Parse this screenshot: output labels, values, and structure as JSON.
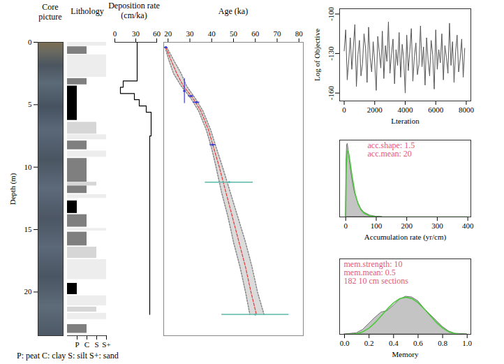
{
  "chart_data": [
    {
      "type": "image",
      "title": "Core picture",
      "ylabel": "Depth (m)",
      "ylim": [
        0,
        23.5
      ],
      "yticks": [
        0,
        5,
        10,
        15,
        20
      ]
    },
    {
      "type": "lithology",
      "title": "Lithology",
      "xlim": [
        0,
        4
      ],
      "xticks": [
        {
          "value": 1,
          "label": "P"
        },
        {
          "value": 2,
          "label": "C"
        },
        {
          "value": 3,
          "label": "S"
        },
        {
          "value": 4,
          "label": "S+"
        }
      ],
      "colors": [
        "#000000",
        "#7f7f7f",
        "#d6d6d6",
        "#ededed"
      ],
      "caption": "P: peat C: clay S: silt S+: sand",
      "intervals": [
        {
          "top": 0,
          "bottom": 0.3,
          "class": "S+"
        },
        {
          "top": 0.35,
          "bottom": 0.95,
          "class": "C"
        },
        {
          "top": 1.0,
          "bottom": 2.8,
          "class": "S+"
        },
        {
          "top": 2.9,
          "bottom": 3.4,
          "class": "C"
        },
        {
          "top": 3.5,
          "bottom": 6.25,
          "class": "P"
        },
        {
          "top": 6.4,
          "bottom": 7.35,
          "class": "S"
        },
        {
          "top": 7.4,
          "bottom": 7.8,
          "class": "S+"
        },
        {
          "top": 7.9,
          "bottom": 8.6,
          "class": "C"
        },
        {
          "top": 8.7,
          "bottom": 9.2,
          "class": "S+"
        },
        {
          "top": 9.3,
          "bottom": 11.2,
          "class": "C"
        },
        {
          "top": 11.2,
          "bottom": 11.5,
          "class": "S"
        },
        {
          "top": 11.5,
          "bottom": 12.1,
          "class": "C"
        },
        {
          "top": 12.2,
          "bottom": 12.5,
          "class": "S+"
        },
        {
          "top": 12.7,
          "bottom": 13.7,
          "class": "P"
        },
        {
          "top": 13.8,
          "bottom": 14.8,
          "class": "C"
        },
        {
          "top": 14.9,
          "bottom": 15.1,
          "class": "S+"
        },
        {
          "top": 15.2,
          "bottom": 16.3,
          "class": "C"
        },
        {
          "top": 16.4,
          "bottom": 17.3,
          "class": "S"
        },
        {
          "top": 17.4,
          "bottom": 19.0,
          "class": "S+"
        },
        {
          "top": 19.3,
          "bottom": 20.2,
          "class": "P"
        },
        {
          "top": 20.3,
          "bottom": 21.1,
          "class": "S+"
        },
        {
          "top": 21.2,
          "bottom": 21.6,
          "class": "S"
        },
        {
          "top": 21.7,
          "bottom": 22.2,
          "class": "S+"
        },
        {
          "top": 22.6,
          "bottom": 23.3,
          "class": "C"
        }
      ]
    },
    {
      "type": "step",
      "title": "Deposition rate (cm/ka)",
      "xlim": [
        0,
        60
      ],
      "xticks": [
        0,
        30,
        60
      ],
      "color": "#000000",
      "intervals": [
        {
          "top": 0,
          "bottom": 3.1,
          "rate": 32
        },
        {
          "top": 3.1,
          "bottom": 3.6,
          "rate": 12
        },
        {
          "top": 3.6,
          "bottom": 4.1,
          "rate": 8
        },
        {
          "top": 4.1,
          "bottom": 4.6,
          "rate": 28
        },
        {
          "top": 4.6,
          "bottom": 5.1,
          "rate": 35
        },
        {
          "top": 5.1,
          "bottom": 5.6,
          "rate": 45
        },
        {
          "top": 5.6,
          "bottom": 7.5,
          "rate": 52
        },
        {
          "top": 7.5,
          "bottom": 21.8,
          "rate": 50
        }
      ]
    },
    {
      "type": "age_depth",
      "title": "Age (ka)",
      "xlim": [
        18,
        82
      ],
      "xticks": [
        20,
        30,
        40,
        50,
        60,
        70,
        80
      ],
      "model": {
        "color": "#e53935",
        "depth": [
          0.4,
          1.5,
          2.5,
          3.5,
          4.5,
          5.5,
          7.0,
          8.5,
          10.0,
          12.0,
          14.0,
          16.0,
          18.0,
          20.0,
          21.8
        ],
        "mean": [
          19.0,
          21.5,
          24.0,
          27.0,
          31.5,
          35.0,
          38.5,
          41.0,
          43.5,
          46.5,
          49.5,
          52.5,
          55.5,
          58.0,
          60.5
        ],
        "min": [
          18.6,
          20.5,
          22.5,
          26.0,
          30.5,
          34.0,
          37.5,
          40.0,
          42.0,
          44.5,
          47.5,
          50.0,
          53.0,
          55.5,
          57.5
        ],
        "max": [
          19.4,
          22.8,
          26.0,
          28.5,
          32.5,
          36.0,
          39.5,
          42.2,
          45.0,
          48.5,
          52.0,
          55.5,
          58.5,
          61.0,
          64.0
        ]
      },
      "dates": [
        {
          "color": "#3b3bd6",
          "points": [
            {
              "depth": 0.4,
              "age": 19.0,
              "age_error": 0.8
            },
            {
              "depth": 3.9,
              "age": 27.5,
              "age_error": 0.5,
              "depth_error": 1.0
            },
            {
              "depth": 4.3,
              "age": 30.5,
              "age_error": 1.2
            },
            {
              "depth": 4.8,
              "age": 33.0,
              "age_error": 1.5
            },
            {
              "depth": 8.2,
              "age": 40.5,
              "age_error": 1.3
            }
          ]
        },
        {
          "color": "#5ab8a8",
          "points": [
            {
              "depth": 11.2,
              "age": 48.0,
              "age_error": 11.0
            },
            {
              "depth": 21.8,
              "age": 60.0,
              "age_error": 15.4
            }
          ]
        }
      ]
    },
    {
      "type": "line",
      "xlabel": "Lteration",
      "ylabel": "Log of Objective",
      "xlim": [
        -300,
        8300
      ],
      "xticks": [
        0,
        2000,
        4000,
        6000,
        8000
      ],
      "ylim": [
        -166,
        -96
      ],
      "yticks": [
        -160,
        -130,
        -100
      ],
      "color": "#555555",
      "x": [
        0,
        100,
        200,
        300,
        400,
        500,
        600,
        700,
        800,
        900,
        1000,
        1100,
        1200,
        1300,
        1400,
        1500,
        1600,
        1700,
        1800,
        1900,
        2000,
        2100,
        2200,
        2300,
        2400,
        2500,
        2600,
        2700,
        2800,
        2900,
        3000,
        3100,
        3200,
        3300,
        3400,
        3500,
        3600,
        3700,
        3800,
        3900,
        4000,
        4100,
        4200,
        4300,
        4400,
        4500,
        4600,
        4700,
        4800,
        4900,
        5000,
        5100,
        5200,
        5300,
        5400,
        5500,
        5600,
        5700,
        5800,
        5900,
        6000,
        6100,
        6200,
        6300,
        6400,
        6500,
        6600,
        6700,
        6800,
        6900,
        7000,
        7100,
        7200,
        7300,
        7400,
        7500,
        7600,
        7700,
        7800,
        7900
      ],
      "values": [
        -128,
        -112,
        -150,
        -135,
        -118,
        -142,
        -125,
        -108,
        -155,
        -131,
        -120,
        -147,
        -138,
        -115,
        -126,
        -152,
        -110,
        -133,
        -144,
        -121,
        -137,
        -158,
        -117,
        -129,
        -141,
        -113,
        -149,
        -124,
        -136,
        -106,
        -145,
        -130,
        -119,
        -153,
        -127,
        -139,
        -114,
        -148,
        -123,
        -134,
        -160,
        -116,
        -143,
        -128,
        -111,
        -151,
        -132,
        -122,
        -146,
        -138,
        -109,
        -140,
        -125,
        -154,
        -118,
        -135,
        -147,
        -120,
        -131,
        -157,
        -112,
        -142,
        -127,
        -137,
        -115,
        -150,
        -124,
        -133,
        -145,
        -107,
        -139,
        -121,
        -152,
        -129,
        -116,
        -144,
        -134,
        -119,
        -148,
        -126
      ]
    },
    {
      "type": "density",
      "xlabel": "Accumulation rate (yr/cm)",
      "xlim": [
        -20,
        410
      ],
      "xticks": [
        0,
        100,
        200,
        300,
        400
      ],
      "ylim": [
        0,
        0.042
      ],
      "tick_labels": "x",
      "annotations": [
        "acc.shape: 1.5",
        "acc.mean: 20"
      ],
      "series": [
        {
          "type": "area",
          "color": "#c4c4c4",
          "x": [
            0,
            2,
            4,
            6,
            8,
            10,
            15,
            20,
            25,
            30,
            40,
            50,
            60,
            80,
            100,
            120
          ],
          "values": [
            0,
            0.03,
            0.039,
            0.04,
            0.038,
            0.035,
            0.028,
            0.022,
            0.017,
            0.013,
            0.008,
            0.0045,
            0.0025,
            0.0008,
            0.0002,
            0
          ]
        },
        {
          "type": "line",
          "color": "#4cc93c",
          "x": [
            0,
            2,
            5,
            7,
            10,
            15,
            20,
            30,
            40,
            50,
            60,
            80,
            100,
            150,
            200,
            300,
            400
          ],
          "values": [
            0,
            0.0283,
            0.0356,
            0.0364,
            0.0346,
            0.0292,
            0.0232,
            0.0134,
            0.0073,
            0.0039,
            0.002,
            0.0005,
            0.0001,
            0,
            0,
            0,
            0
          ]
        }
      ]
    },
    {
      "type": "density",
      "xlabel": "Memory",
      "xlim": [
        -0.04,
        1.03
      ],
      "xticks": [
        {
          "value": 0,
          "label": "0.0"
        },
        {
          "value": 0.2,
          "label": "0.2"
        },
        {
          "value": 0.4,
          "label": "0.4"
        },
        {
          "value": 0.6,
          "label": "0.6"
        },
        {
          "value": 0.8,
          "label": "0.8"
        },
        {
          "value": 1,
          "label": "1.0"
        }
      ],
      "ylim": [
        0,
        5
      ],
      "tick_labels": "x",
      "annotations": [
        "mem.strength: 10",
        "mem.mean: 0.5",
        "182 10 cm sections"
      ],
      "series": [
        {
          "type": "area",
          "color": "#c4c4c4",
          "x": [
            0,
            0.1,
            0.15,
            0.2,
            0.25,
            0.3,
            0.35,
            0.4,
            0.45,
            0.5,
            0.55,
            0.6,
            0.65,
            0.7,
            0.75,
            0.8,
            0.85,
            0.9,
            1
          ],
          "values": [
            0,
            0.08,
            0.3,
            0.7,
            1.1,
            1.45,
            1.55,
            1.9,
            2.3,
            2.5,
            2.45,
            2.2,
            1.7,
            1.3,
            0.9,
            0.5,
            0.2,
            0.05,
            0
          ]
        },
        {
          "type": "line",
          "color": "#4cc93c",
          "x": [
            0,
            0.05,
            0.1,
            0.15,
            0.2,
            0.25,
            0.3,
            0.35,
            0.4,
            0.45,
            0.5,
            0.55,
            0.6,
            0.65,
            0.7,
            0.75,
            0.8,
            0.85,
            0.9,
            0.95,
            1
          ],
          "values": [
            0,
            0.0032,
            0.041,
            0.166,
            0.413,
            0.779,
            1.225,
            1.687,
            2.09,
            2.364,
            2.46,
            2.364,
            2.09,
            1.687,
            1.225,
            0.779,
            0.413,
            0.166,
            0.041,
            0.0032,
            0
          ]
        }
      ]
    }
  ]
}
